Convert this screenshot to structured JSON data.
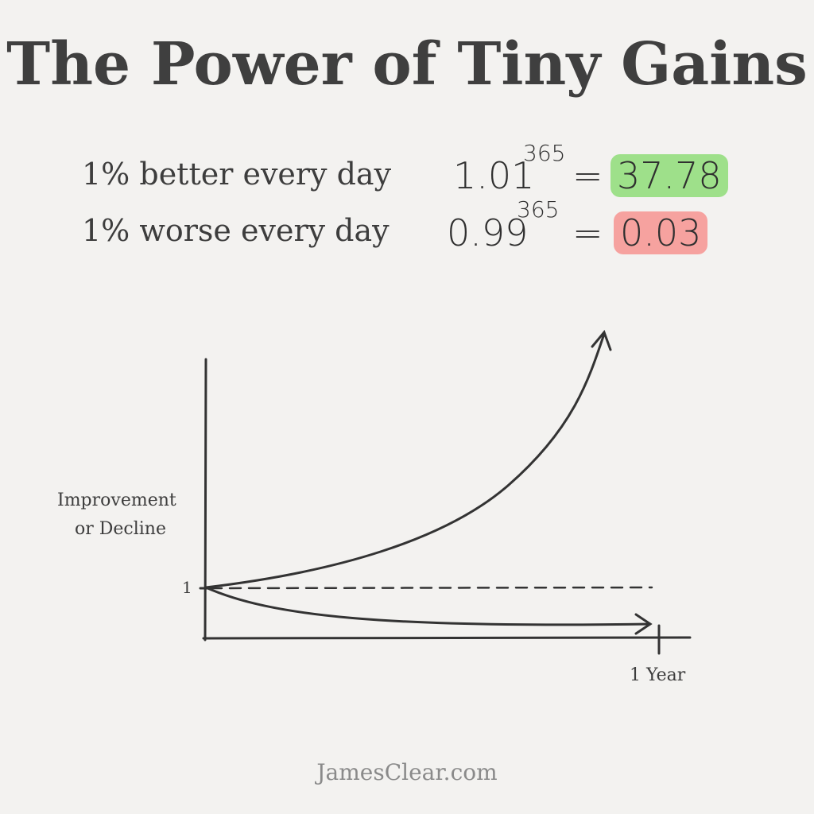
{
  "title": "The Power of Tiny Gains",
  "rows": [
    {
      "label": "1% better every day",
      "base": "1.01",
      "exponent": "365",
      "equals": "=",
      "result": "37.78",
      "highlight": "#9ee08a"
    },
    {
      "label": "1% worse every day",
      "base": "0.99",
      "exponent": "365",
      "equals": "=",
      "result": "0.03",
      "highlight": "#f6a29f"
    }
  ],
  "diagram": {
    "y_axis_label_line1": "Improvement",
    "y_axis_label_line2": "or Decline",
    "y_tick": "1",
    "x_tick": "1 Year"
  },
  "footer": "JamesClear.com",
  "colors": {
    "background": "#f3f2f0",
    "text": "#3d3d3d",
    "line": "#333333"
  }
}
